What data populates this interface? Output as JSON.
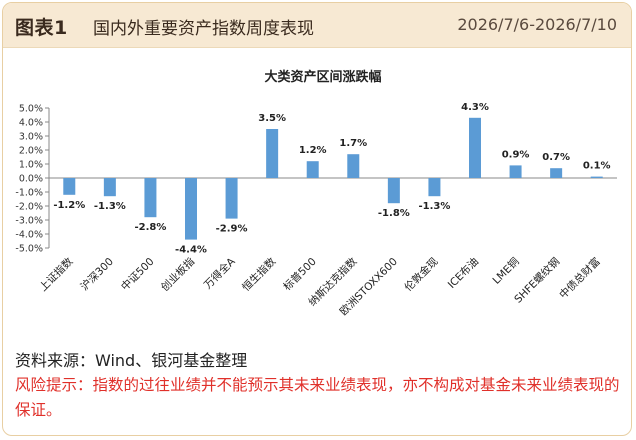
{
  "header": {
    "figure_label": "图表1",
    "figure_title": "国内外重要资产指数周度表现",
    "date_range": "2026/7/6-2026/7/10"
  },
  "colors": {
    "bar": "#5b9bd5",
    "header_bg": "#f7e9d3",
    "risk_text": "#e0302a"
  },
  "chart_data": {
    "type": "bar",
    "title": "大类资产区间涨跌幅",
    "categories": [
      "上证指数",
      "沪深300",
      "中证500",
      "创业板指",
      "万得全A",
      "恒生指数",
      "标普500",
      "纳斯达克指数",
      "欧洲STOXX600",
      "伦敦金现",
      "ICE布油",
      "LME铜",
      "SHFE螺纹钢",
      "中债总财富"
    ],
    "values": [
      -1.2,
      -1.3,
      -2.8,
      -4.4,
      -2.9,
      3.5,
      1.2,
      1.7,
      -1.8,
      -1.3,
      4.3,
      0.9,
      0.7,
      0.1
    ],
    "data_labels": [
      "-1.2%",
      "-1.3%",
      "-2.8%",
      "-4.4%",
      "-2.9%",
      "3.5%",
      "1.2%",
      "1.7%",
      "-1.8%",
      "-1.3%",
      "4.3%",
      "0.9%",
      "0.7%",
      "0.1%"
    ],
    "yticks": [
      5.0,
      4.0,
      3.0,
      2.0,
      1.0,
      0.0,
      -1.0,
      -2.0,
      -3.0,
      -4.0,
      -5.0
    ],
    "ytick_labels": [
      "5.0%",
      "4.0%",
      "3.0%",
      "2.0%",
      "1.0%",
      "0.0%",
      "-1.0%",
      "-2.0%",
      "-3.0%",
      "-4.0%",
      "-5.0%"
    ],
    "ylim": [
      -5,
      5
    ],
    "grid": false,
    "legend": "none",
    "xlabel": "",
    "ylabel": ""
  },
  "footer": {
    "source": "资料来源：Wind、银河基金整理",
    "risk_notice": "风险提示：指数的过往业绩并不能预示其未来业绩表现，亦不构成对基金未来业绩表现的保证。"
  }
}
